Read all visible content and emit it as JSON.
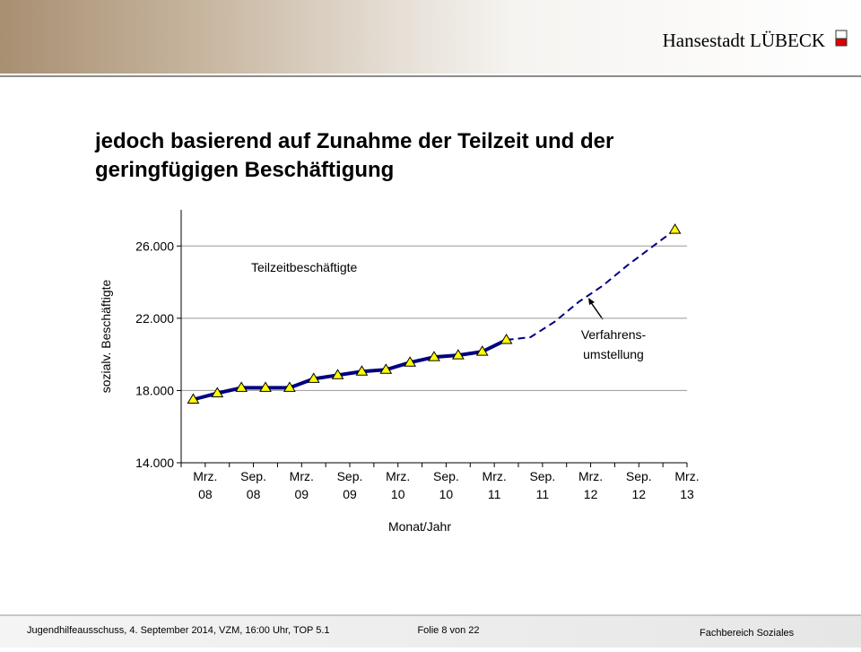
{
  "header": {
    "brand": "Hansestadt LÜBECK"
  },
  "footer": {
    "left": "Jugendhilfeausschuss, 4. September 2014, VZM, 16:00 Uhr, TOP 5.1",
    "center": "Folie 8 von 22",
    "right": "Fachbereich Soziales"
  },
  "chart_data": {
    "type": "line",
    "title": "jedoch basierend auf Zunahme der Teilzeit und der geringfügigen Beschäftigung",
    "y_label": "sozialv. Beschäftigte",
    "x_label": "Monat/Jahr",
    "annotations": [
      "Teilzeitbeschäftigte",
      "Verfahrens-",
      "umstellung"
    ],
    "categories": [
      "Mrz. 08",
      null,
      "Sep. 08",
      null,
      "Mrz. 09",
      null,
      "Sep. 09",
      null,
      "Mrz. 10",
      null,
      "Sep. 10",
      null,
      "Mrz. 11",
      null,
      "Sep. 11",
      null,
      "Mrz. 12",
      null,
      "Sep. 12",
      null,
      "Mrz. 13"
    ],
    "series": [
      {
        "color": "#000080",
        "dashed": false,
        "markers": true,
        "values": [
          17500,
          17850,
          18150,
          18150,
          18150,
          18650,
          18850,
          19050,
          19150,
          19550,
          19850,
          19950,
          20150,
          20800,
          null,
          null,
          null,
          null,
          null,
          null,
          26900
        ]
      },
      {
        "color": "#000080",
        "dashed": true,
        "markers": false,
        "values": [
          null,
          null,
          null,
          null,
          null,
          null,
          null,
          null,
          null,
          null,
          null,
          null,
          null,
          20800,
          20950,
          21800,
          22900,
          23800,
          24900,
          25900,
          26900
        ]
      }
    ],
    "marker_color": "#ffff00",
    "ylim": [
      14000,
      28000
    ],
    "yticks": [
      {
        "value": 14000,
        "label": "14.000"
      },
      {
        "value": 18000,
        "label": "18.000"
      },
      {
        "value": 22000,
        "label": "22.000"
      },
      {
        "value": 26000,
        "label": "26.000"
      }
    ],
    "grid": true
  }
}
